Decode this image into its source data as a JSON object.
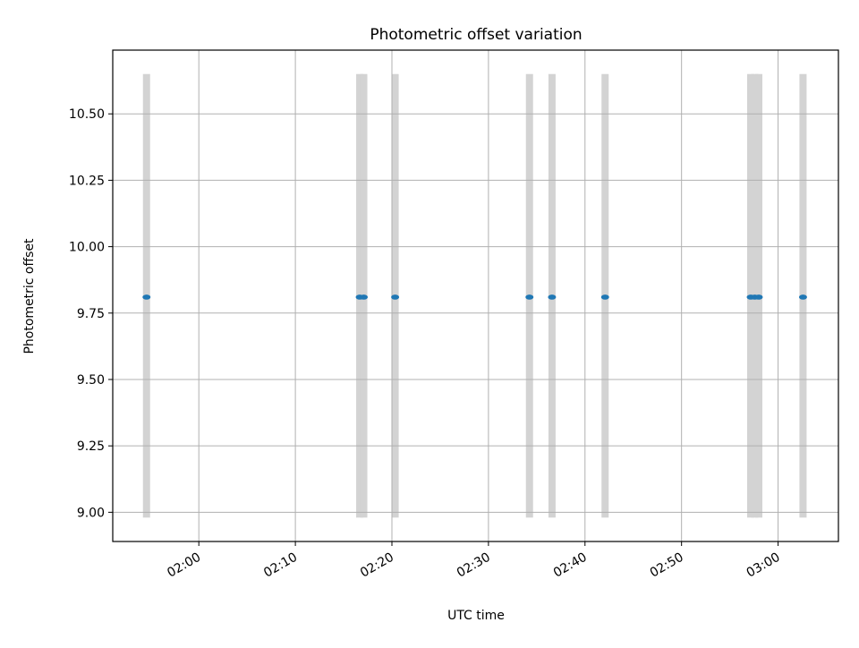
{
  "chart_data": {
    "type": "scatter",
    "title": "Photometric offset variation",
    "xlabel": "UTC time",
    "ylabel": "Photometric offset",
    "x_ticks": [
      "02:00",
      "02:10",
      "02:20",
      "02:30",
      "02:40",
      "02:50",
      "03:00"
    ],
    "y_ticks": [
      "9.00",
      "9.25",
      "9.50",
      "9.75",
      "10.00",
      "10.25",
      "10.50"
    ],
    "xlim": [
      "01:51:05",
      "03:06:15"
    ],
    "ylim": [
      8.89,
      10.74
    ],
    "grid": true,
    "shaded_band": {
      "y_range": [
        8.98,
        10.65
      ],
      "color": "#d3d3d3"
    },
    "series": [
      {
        "color": "#1f77b4",
        "points": [
          {
            "x": "01:54:35",
            "y": 9.81
          },
          {
            "x": "02:16:40",
            "y": 9.81
          },
          {
            "x": "02:17:05",
            "y": 9.81
          },
          {
            "x": "02:20:20",
            "y": 9.81
          },
          {
            "x": "02:34:15",
            "y": 9.81
          },
          {
            "x": "02:36:35",
            "y": 9.81
          },
          {
            "x": "02:42:05",
            "y": 9.81
          },
          {
            "x": "02:57:10",
            "y": 9.81
          },
          {
            "x": "02:57:35",
            "y": 9.81
          },
          {
            "x": "02:58:00",
            "y": 9.81
          },
          {
            "x": "03:02:35",
            "y": 9.81
          }
        ]
      }
    ]
  }
}
